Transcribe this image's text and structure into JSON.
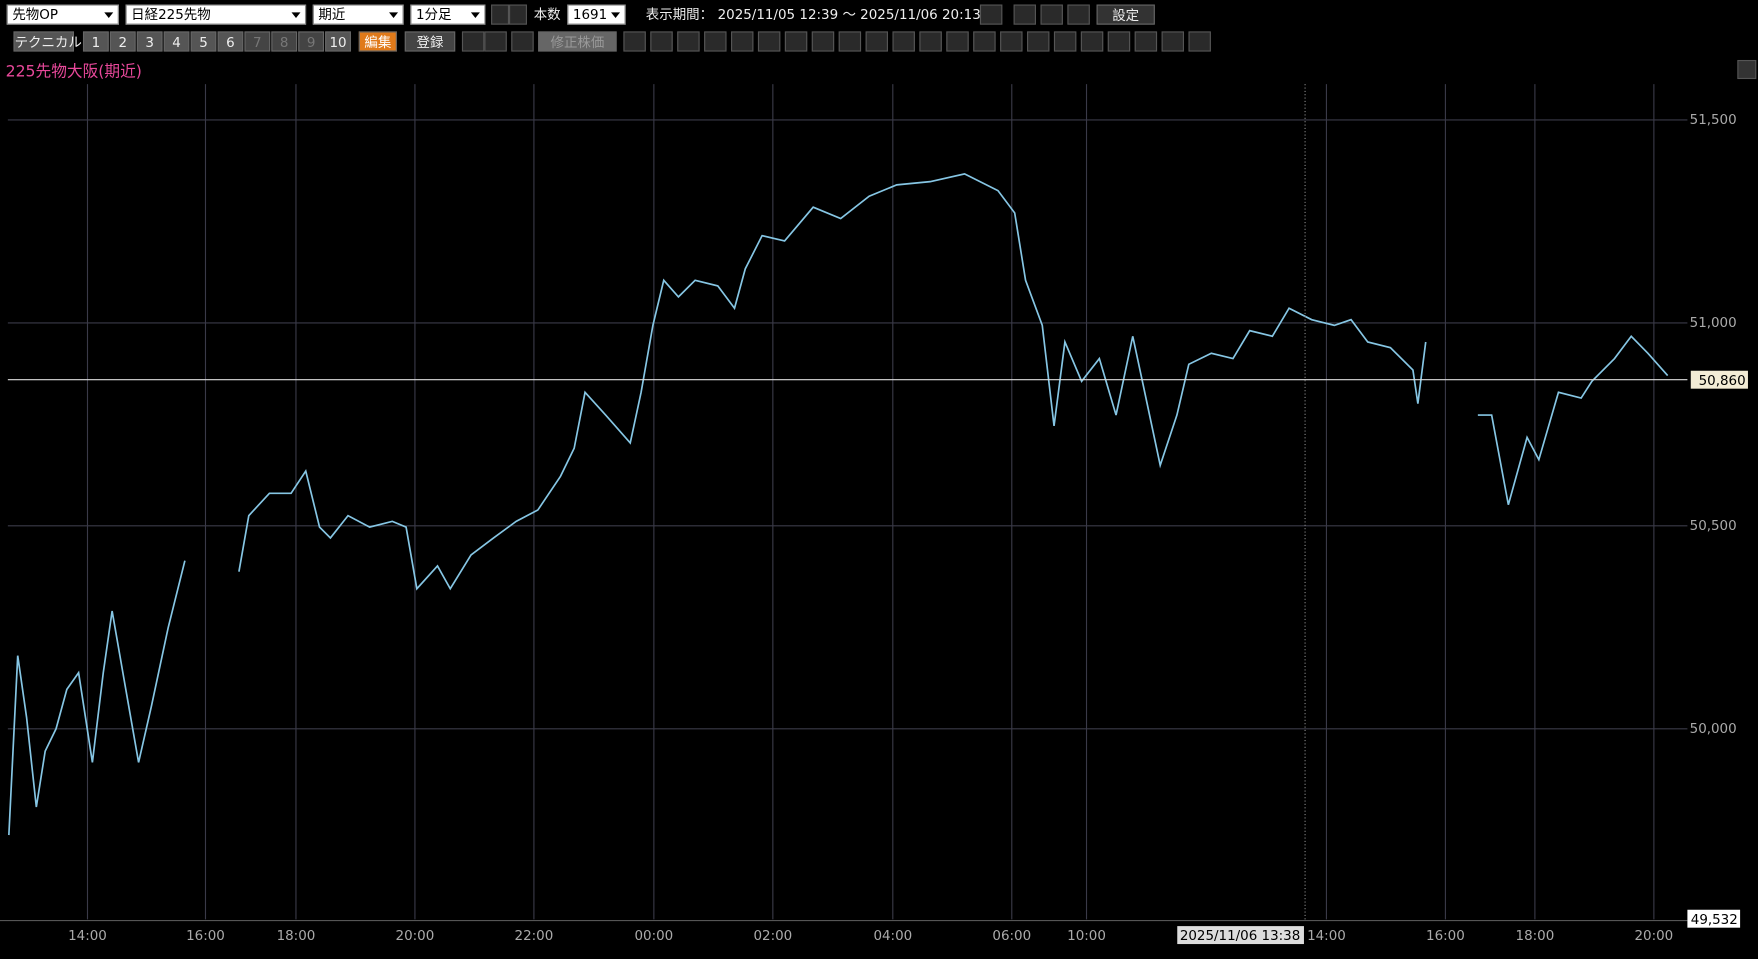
{
  "toolbar": {
    "selects": [
      "先物OP",
      "日経225先物",
      "期近",
      "1分足"
    ],
    "count_label": "本数",
    "count": "1691",
    "period_label": "表示期間：",
    "period": "2025/11/05 12:39 ～ 2025/11/06 20:13",
    "settings": "設定",
    "technical": "テクニカル",
    "numbers": [
      "1",
      "2",
      "3",
      "4",
      "5",
      "6",
      "7",
      "8",
      "9",
      "10"
    ],
    "edit": "編集",
    "register": "登録",
    "adjusted": "修正株価"
  },
  "chart_data": {
    "type": "line",
    "title": "225先物大阪(期近)",
    "color": "#86c6e4",
    "x": [
      1,
      10,
      19,
      29,
      38,
      49,
      60,
      72,
      86,
      97,
      106,
      117,
      133,
      146,
      163,
      180,
      190,
      235,
      245,
      266,
      288,
      303,
      317,
      328,
      346,
      368,
      391,
      405,
      416,
      437,
      450,
      471,
      494,
      517,
      539,
      562,
      576,
      587,
      608,
      633,
      644,
      656,
      667,
      682,
      699,
      722,
      739,
      750,
      767,
      790,
      819,
      847,
      876,
      904,
      938,
      973,
      1007,
      1024,
      1035,
      1052,
      1064,
      1075,
      1092,
      1110,
      1127,
      1144,
      1155,
      1172,
      1189,
      1201,
      1224,
      1246,
      1263,
      1286,
      1303,
      1326,
      1349,
      1366,
      1383,
      1406,
      1429,
      1434,
      1442,
      1470,
      1495,
      1509,
      1526,
      1545,
      1557,
      1577,
      1600,
      1611,
      1634,
      1651,
      1668,
      1688
    ],
    "values": [
      49738,
      50180,
      50028,
      49807,
      49945,
      50000,
      50097,
      50138,
      49917,
      50138,
      50290,
      50138,
      49917,
      50055,
      50249,
      50414,
      null,
      50387,
      50525,
      50580,
      50580,
      50635,
      50497,
      50470,
      50525,
      50497,
      50511,
      50497,
      50345,
      50401,
      50345,
      50428,
      50470,
      50511,
      50539,
      50622,
      50691,
      50829,
      50773,
      50704,
      50829,
      50994,
      51105,
      51064,
      51105,
      51091,
      51036,
      51133,
      51215,
      51202,
      51285,
      51257,
      51312,
      51340,
      51348,
      51367,
      51326,
      51271,
      51105,
      50994,
      50746,
      50953,
      50856,
      50912,
      50773,
      50967,
      50843,
      50649,
      50773,
      50898,
      50925,
      50912,
      50981,
      50967,
      51036,
      51008,
      50994,
      51008,
      50953,
      50939,
      50884,
      50801,
      50953,
      null,
      50773,
      50773,
      50552,
      50718,
      50663,
      50829,
      50815,
      50856,
      50912,
      50967,
      50925,
      50870
    ],
    "xlim": [
      0,
      1691
    ],
    "xticks": [
      {
        "value": 81,
        "label": "14:00"
      },
      {
        "value": 201,
        "label": "16:00"
      },
      {
        "value": 293,
        "label": "18:00"
      },
      {
        "value": 414,
        "label": "20:00"
      },
      {
        "value": 535,
        "label": "22:00"
      },
      {
        "value": 657,
        "label": "00:00"
      },
      {
        "value": 778,
        "label": "02:00"
      },
      {
        "value": 900,
        "label": "04:00"
      },
      {
        "value": 1021,
        "label": "06:00"
      },
      {
        "value": 1097,
        "label": "10:00"
      },
      {
        "value": 1341,
        "label": "14:00"
      },
      {
        "value": 1462,
        "label": "16:00"
      },
      {
        "value": 1553,
        "label": "18:00"
      },
      {
        "value": 1674,
        "label": "20:00"
      }
    ],
    "ylim": [
      49532,
      51590
    ],
    "yticks": [
      {
        "value": 50000,
        "label": "50,000"
      },
      {
        "value": 50500,
        "label": "50,500"
      },
      {
        "value": 51000,
        "label": "51,000"
      },
      {
        "value": 51500,
        "label": "51,500"
      }
    ],
    "last": {
      "value": 50860,
      "label": "50,860"
    },
    "axis_min": {
      "value": 49532,
      "label": "49,532"
    },
    "crosshair": "2025/11/06 13:38",
    "grid": true
  }
}
